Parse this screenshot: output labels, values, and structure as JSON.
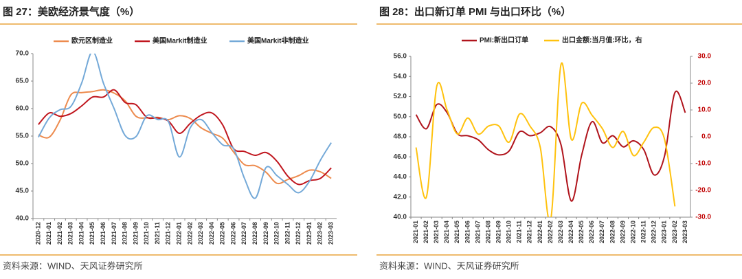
{
  "chart_data": [
    {
      "type": "line",
      "title": "图 27：美欧经济景气度（%）",
      "source": "资料来源：WIND、天风证券研究所",
      "categories": [
        "2020-12",
        "2021-01",
        "2021-02",
        "2021-03",
        "2021-04",
        "2021-05",
        "2021-06",
        "2021-07",
        "2021-08",
        "2021-09",
        "2021-10",
        "2021-11",
        "2021-12",
        "2022-01",
        "2022-02",
        "2022-03",
        "2022-04",
        "2022-05",
        "2022-06",
        "2022-07",
        "2022-08",
        "2022-09",
        "2022-10",
        "2022-11",
        "2022-12",
        "2023-01",
        "2023-02",
        "2023-03"
      ],
      "ylim": [
        40,
        70
      ],
      "yticks": [
        {
          "value": 40,
          "label": "40.0"
        },
        {
          "value": 45,
          "label": "45.0"
        },
        {
          "value": 50,
          "label": "50.0"
        },
        {
          "value": 55,
          "label": "55.0"
        },
        {
          "value": 60,
          "label": "60.0"
        },
        {
          "value": 65,
          "label": "65.0"
        },
        {
          "value": 70,
          "label": "70.0"
        }
      ],
      "series": [
        {
          "name": "欧元区制造业",
          "color": "#ED8B4E",
          "values": [
            55.2,
            54.8,
            57.9,
            62.5,
            62.9,
            63.1,
            63.4,
            62.8,
            61.4,
            58.6,
            58.3,
            58.4,
            58.0,
            58.7,
            58.2,
            56.5,
            55.5,
            54.6,
            52.1,
            49.8,
            49.6,
            48.4,
            46.4,
            47.1,
            47.8,
            48.8,
            48.5,
            47.3
          ]
        },
        {
          "name": "美国Markit制造业",
          "color": "#C0161E",
          "values": [
            57.1,
            59.2,
            58.6,
            59.1,
            60.5,
            62.1,
            62.1,
            63.4,
            61.1,
            60.7,
            58.4,
            58.3,
            57.7,
            55.5,
            57.3,
            58.8,
            59.2,
            57.0,
            52.7,
            52.2,
            51.5,
            52.0,
            50.4,
            47.7,
            46.2,
            46.9,
            47.3,
            49.2
          ]
        },
        {
          "name": "美国Markit非制造业",
          "color": "#74A9D8",
          "values": [
            54.8,
            58.3,
            59.8,
            60.4,
            64.7,
            70.4,
            64.6,
            59.9,
            55.1,
            54.9,
            58.7,
            58.0,
            57.6,
            51.2,
            56.5,
            58.0,
            55.6,
            53.4,
            52.7,
            47.3,
            43.7,
            49.3,
            47.8,
            46.2,
            44.7,
            46.8,
            50.6,
            53.8
          ]
        }
      ]
    },
    {
      "type": "line",
      "title": "图 28：出口新订单 PMI 与出口环比（%）",
      "source": "资料来源：WIND、天风证券研究所",
      "categories": [
        "2021-01",
        "2021-02",
        "2021-03",
        "2021-04",
        "2021-05",
        "2021-06",
        "2021-07",
        "2021-08",
        "2021-09",
        "2021-10",
        "2021-11",
        "2021-12",
        "2022-01",
        "2022-02",
        "2022-03",
        "2022-04",
        "2022-05",
        "2022-06",
        "2022-07",
        "2022-08",
        "2022-09",
        "2022-10",
        "2022-11",
        "2022-12",
        "2023-01",
        "2023-02",
        "2023-03"
      ],
      "ylim": [
        40,
        56
      ],
      "yticks": [
        {
          "value": 40,
          "label": "40.0"
        },
        {
          "value": 42,
          "label": "42.0"
        },
        {
          "value": 44,
          "label": "44.0"
        },
        {
          "value": 46,
          "label": "46.0"
        },
        {
          "value": 48,
          "label": "48.0"
        },
        {
          "value": 50,
          "label": "50.0"
        },
        {
          "value": 52,
          "label": "52.0"
        },
        {
          "value": 54,
          "label": "54.0"
        },
        {
          "value": 56,
          "label": "56.0"
        }
      ],
      "y2lim": [
        -30,
        30
      ],
      "y2ticks": [
        {
          "value": -30,
          "label": "-30.0"
        },
        {
          "value": -20,
          "label": "-20.0"
        },
        {
          "value": -10,
          "label": "-10.0"
        },
        {
          "value": 0,
          "label": "0.0"
        },
        {
          "value": 10,
          "label": "10.0"
        },
        {
          "value": 20,
          "label": "20.0"
        },
        {
          "value": 30,
          "label": "30.0"
        }
      ],
      "y2color": "#C00000",
      "series": [
        {
          "name": "PMI:新出口订单",
          "color": "#B0141C",
          "values": [
            50.2,
            48.8,
            51.2,
            50.4,
            48.3,
            48.1,
            47.7,
            46.7,
            46.2,
            46.6,
            48.5,
            48.1,
            48.4,
            49.0,
            47.2,
            41.6,
            46.2,
            49.5,
            47.4,
            48.1,
            47.0,
            47.6,
            46.7,
            44.2,
            46.1,
            52.4,
            50.4
          ]
        },
        {
          "name": "出口金额:当月值:环比，右",
          "color": "#FFC20E",
          "axis": "y2",
          "values": [
            -4.0,
            -22.5,
            18.8,
            10.0,
            1.0,
            7.0,
            1.0,
            4.0,
            4.0,
            -2.0,
            8.5,
            4.0,
            -4.0,
            -31.0,
            27.0,
            -1.0,
            12.5,
            8.0,
            3.0,
            -4.0,
            2.0,
            -7.0,
            -2.0,
            3.5,
            -1.0,
            -26.0,
            null
          ]
        }
      ]
    }
  ]
}
